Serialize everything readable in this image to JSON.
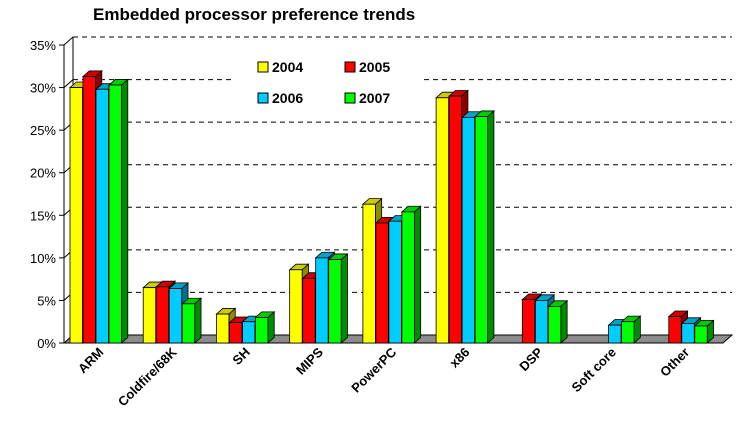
{
  "chart_data": {
    "type": "bar",
    "title": "Embedded processor preference trends",
    "xlabel": "",
    "ylabel": "",
    "categories": [
      "ARM",
      "Coldfire/68K",
      "SH",
      "MIPS",
      "PowerPC",
      "x86",
      "DSP",
      "Soft core",
      "Other"
    ],
    "series": [
      {
        "name": "2004",
        "color": "#ffff00",
        "values": [
          30,
          6.5,
          3.4,
          8.6,
          16.3,
          28.8,
          null,
          null,
          null
        ]
      },
      {
        "name": "2005",
        "color": "#ff0000",
        "values": [
          31.3,
          6.6,
          2.4,
          7.6,
          14.1,
          29,
          5.1,
          null,
          3.1
        ]
      },
      {
        "name": "2006",
        "color": "#00ccff",
        "values": [
          29.8,
          6.4,
          2.5,
          10,
          14.3,
          26.5,
          5,
          2.1,
          2.3
        ]
      },
      {
        "name": "2007",
        "color": "#00ff00",
        "values": [
          30.3,
          4.6,
          3,
          9.8,
          15.4,
          26.6,
          4.3,
          2.5,
          2
        ]
      }
    ],
    "ylim": [
      0,
      35
    ],
    "yticks": [
      "0%",
      "5%",
      "10%",
      "15%",
      "20%",
      "25%",
      "30%",
      "35%"
    ],
    "grid": true,
    "legend": "top-center"
  }
}
